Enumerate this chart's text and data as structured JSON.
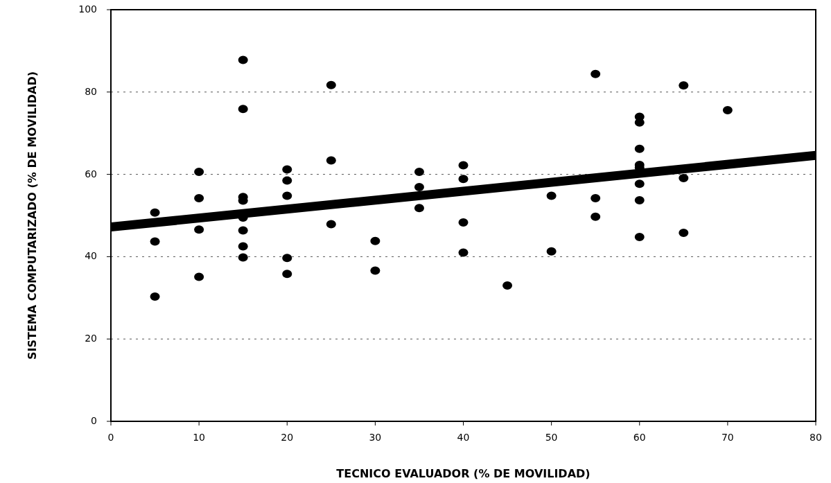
{
  "chart_data": {
    "type": "scatter",
    "xlabel": "TECNICO EVALUADOR (% DE MOVILIDAD)",
    "ylabel": "SISTEMA COMPUTARIZADO (% DE MOVILIDAD)",
    "xlim": [
      0,
      80
    ],
    "ylim": [
      0,
      100
    ],
    "xticks": [
      0,
      10,
      20,
      30,
      40,
      50,
      60,
      70,
      80
    ],
    "yticks": [
      0,
      20,
      40,
      60,
      80,
      100
    ],
    "grid": "y",
    "marker": "circle",
    "series": [
      {
        "color": "#000000",
        "x": [
          5,
          5,
          5,
          10,
          10,
          10,
          10,
          15,
          15,
          15,
          15,
          15,
          15,
          15,
          15,
          20,
          20,
          20,
          20,
          20,
          25,
          25,
          25,
          30,
          30,
          35,
          35,
          35,
          40,
          40,
          40,
          40,
          45,
          50,
          50,
          55,
          55,
          55,
          60,
          60,
          60,
          60,
          60,
          60,
          60,
          60,
          65,
          65,
          65,
          70
        ],
        "values": [
          50.7,
          43.7,
          30.3,
          60.6,
          54.2,
          46.6,
          35.1,
          87.8,
          75.9,
          54.5,
          53.6,
          49.5,
          46.4,
          42.5,
          39.8,
          61.2,
          58.5,
          54.8,
          39.7,
          35.8,
          81.7,
          63.4,
          47.9,
          43.8,
          36.6,
          60.6,
          56.9,
          51.8,
          62.2,
          58.9,
          48.3,
          41.0,
          33.0,
          54.8,
          41.3,
          84.4,
          54.2,
          49.7,
          74.0,
          72.6,
          66.2,
          62.3,
          61.6,
          57.7,
          53.7,
          44.8,
          81.6,
          59.1,
          45.8,
          75.6
        ]
      },
      {
        "type": "line",
        "color": "#000000",
        "x": [
          0,
          80
        ],
        "values": [
          47.2,
          64.6
        ],
        "marker": "none",
        "line_style": "solid"
      }
    ]
  }
}
